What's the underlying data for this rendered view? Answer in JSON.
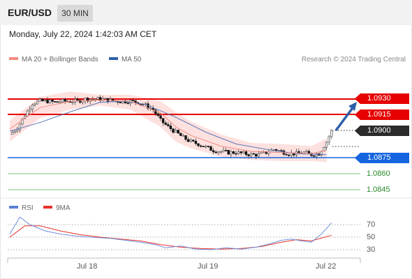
{
  "header": {
    "symbol": "EUR/USD",
    "timeframe": "30 MIN"
  },
  "datetime": "Monday, July 22, 2024 1:42:03 AM CET",
  "legend": {
    "ma20": {
      "label": "MA 20 + Bollinger Bands",
      "color": "#f28b82"
    },
    "ma50": {
      "label": "MA 50",
      "color": "#2c5fa8"
    }
  },
  "credit": "Research © 2024 Trading Central",
  "rsi_legend": {
    "rsi": {
      "label": "RSI",
      "color": "#5b7fd6"
    },
    "ma9": {
      "label": "9MA",
      "color": "#e8312a"
    }
  },
  "levels": [
    {
      "label": "1.0930",
      "kind": "resistance",
      "color": "#e60000"
    },
    {
      "label": "1.0915",
      "kind": "resistance",
      "color": "#e60000"
    },
    {
      "label": "1.0900",
      "kind": "current",
      "color": "#2b2b2b"
    },
    {
      "label": "1.0875",
      "kind": "pivot",
      "color": "#1565e0"
    },
    {
      "label": "1.0860",
      "kind": "support",
      "color": "#2a8a2a"
    },
    {
      "label": "1.0845",
      "kind": "support",
      "color": "#2a8a2a"
    }
  ],
  "rsi_levels": [
    "70",
    "50",
    "30"
  ],
  "chart_data": {
    "type": "candlestick",
    "x_ticks": [
      "Jul 18",
      "Jul 19",
      "Jul 22"
    ],
    "price_axis_labels": [
      1.093,
      1.0915,
      1.09,
      1.0875,
      1.086,
      1.0845
    ],
    "close_path": [
      [
        0,
        1.0897
      ],
      [
        3,
        1.0903
      ],
      [
        6,
        1.0915
      ],
      [
        9,
        1.0926
      ],
      [
        12,
        1.0928
      ],
      [
        15,
        1.0928
      ],
      [
        18,
        1.0927
      ],
      [
        21,
        1.0928
      ],
      [
        24,
        1.0928
      ],
      [
        27,
        1.0928
      ],
      [
        30,
        1.093
      ],
      [
        33,
        1.093
      ],
      [
        36,
        1.093
      ],
      [
        39,
        1.0929
      ],
      [
        42,
        1.0928
      ],
      [
        45,
        1.0928
      ],
      [
        48,
        1.0928
      ],
      [
        51,
        1.0927
      ],
      [
        54,
        1.0924
      ],
      [
        57,
        1.092
      ],
      [
        60,
        1.091
      ],
      [
        63,
        1.0904
      ],
      [
        66,
        1.0899
      ],
      [
        69,
        1.0894
      ],
      [
        72,
        1.089
      ],
      [
        75,
        1.0888
      ],
      [
        78,
        1.0885
      ],
      [
        81,
        1.0882
      ],
      [
        84,
        1.0881
      ],
      [
        87,
        1.088
      ],
      [
        90,
        1.088
      ],
      [
        93,
        1.0879
      ],
      [
        96,
        1.0878
      ],
      [
        99,
        1.0878
      ],
      [
        102,
        1.088
      ],
      [
        105,
        1.0883
      ],
      [
        108,
        1.0881
      ],
      [
        111,
        1.0879
      ],
      [
        114,
        1.0879
      ],
      [
        117,
        1.088
      ],
      [
        120,
        1.0878
      ],
      [
        123,
        1.0879
      ],
      [
        126,
        1.089
      ],
      [
        128,
        1.09
      ]
    ],
    "ma20": [
      [
        0,
        1.0902
      ],
      [
        12,
        1.0922
      ],
      [
        24,
        1.0928
      ],
      [
        36,
        1.0929
      ],
      [
        48,
        1.0928
      ],
      [
        60,
        1.0917
      ],
      [
        66,
        1.0904
      ],
      [
        72,
        1.0896
      ],
      [
        84,
        1.0886
      ],
      [
        96,
        1.0881
      ],
      [
        108,
        1.088
      ],
      [
        120,
        1.0879
      ],
      [
        126,
        1.0882
      ]
    ],
    "ma50": [
      [
        0,
        1.09
      ],
      [
        12,
        1.0908
      ],
      [
        24,
        1.0918
      ],
      [
        36,
        1.0927
      ],
      [
        45,
        1.0928
      ],
      [
        54,
        1.0925
      ],
      [
        66,
        1.0913
      ],
      [
        78,
        1.0899
      ],
      [
        90,
        1.0888
      ],
      [
        102,
        1.0883
      ],
      [
        114,
        1.0879
      ],
      [
        126,
        1.0878
      ]
    ],
    "bb_upper": [
      [
        0,
        1.091
      ],
      [
        12,
        1.0932
      ],
      [
        24,
        1.0937
      ],
      [
        36,
        1.0934
      ],
      [
        48,
        1.0934
      ],
      [
        60,
        1.0928
      ],
      [
        66,
        1.0918
      ],
      [
        72,
        1.0909
      ],
      [
        84,
        1.0897
      ],
      [
        96,
        1.0889
      ],
      [
        108,
        1.0888
      ],
      [
        120,
        1.0886
      ],
      [
        126,
        1.0893
      ]
    ],
    "bb_lower": [
      [
        0,
        1.089
      ],
      [
        12,
        1.0912
      ],
      [
        24,
        1.092
      ],
      [
        36,
        1.0924
      ],
      [
        48,
        1.092
      ],
      [
        60,
        1.0904
      ],
      [
        66,
        1.089
      ],
      [
        72,
        1.0884
      ],
      [
        84,
        1.0876
      ],
      [
        96,
        1.0873
      ],
      [
        108,
        1.0872
      ],
      [
        120,
        1.0872
      ],
      [
        126,
        1.0871
      ]
    ],
    "rsi": [
      [
        0,
        55
      ],
      [
        4,
        82
      ],
      [
        8,
        70
      ],
      [
        14,
        60
      ],
      [
        20,
        55
      ],
      [
        26,
        52
      ],
      [
        32,
        50
      ],
      [
        40,
        48
      ],
      [
        46,
        45
      ],
      [
        52,
        42
      ],
      [
        58,
        38
      ],
      [
        62,
        33
      ],
      [
        68,
        36
      ],
      [
        74,
        31
      ],
      [
        80,
        30
      ],
      [
        86,
        33
      ],
      [
        92,
        31
      ],
      [
        98,
        34
      ],
      [
        104,
        40
      ],
      [
        108,
        45
      ],
      [
        112,
        47
      ],
      [
        116,
        44
      ],
      [
        120,
        42
      ],
      [
        124,
        55
      ],
      [
        128,
        73
      ]
    ],
    "rsi_ma9": [
      [
        0,
        50
      ],
      [
        6,
        68
      ],
      [
        12,
        68
      ],
      [
        20,
        60
      ],
      [
        28,
        54
      ],
      [
        36,
        50
      ],
      [
        44,
        47
      ],
      [
        52,
        44
      ],
      [
        60,
        38
      ],
      [
        68,
        34
      ],
      [
        76,
        32
      ],
      [
        84,
        31
      ],
      [
        92,
        32
      ],
      [
        100,
        35
      ],
      [
        108,
        42
      ],
      [
        114,
        46
      ],
      [
        120,
        44
      ],
      [
        128,
        53
      ]
    ],
    "forecast_target": 1.093
  }
}
